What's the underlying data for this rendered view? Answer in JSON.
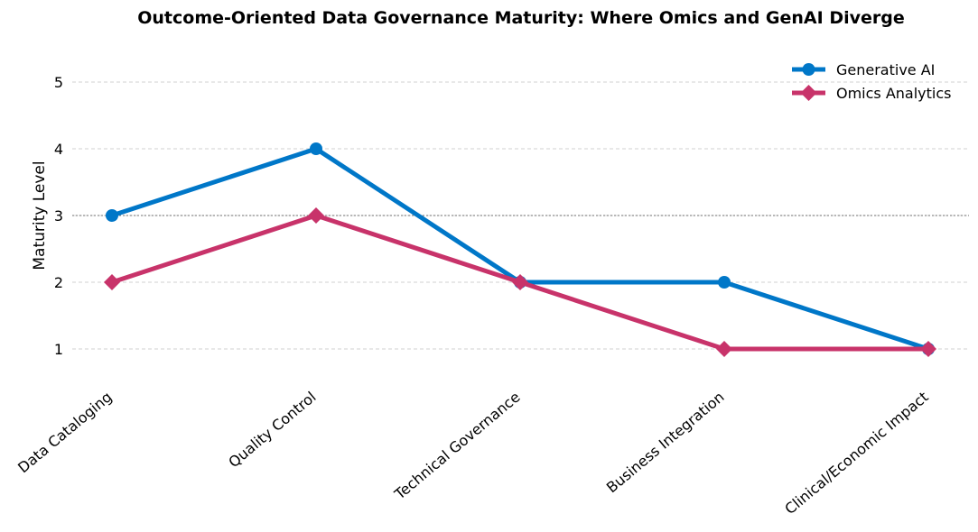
{
  "chart_data": {
    "type": "line",
    "title": "Outcome-Oriented Data Governance Maturity: Where Omics and GenAI Diverge",
    "xlabel": "",
    "ylabel": "Maturity Level",
    "categories": [
      "Data Cataloging",
      "Quality Control",
      "Technical Governance",
      "Business Integration",
      "Clinical/Economic Impact"
    ],
    "yticks": [
      "1",
      "2",
      "3",
      "4",
      "5"
    ],
    "ylim": [
      0.5,
      5.5
    ],
    "reference_line": 3,
    "grid": true,
    "legend_position": "top-right",
    "series": [
      {
        "name": "Generative AI",
        "values": [
          3,
          4,
          2,
          2,
          1
        ],
        "color": "#0077C8",
        "marker": "circle"
      },
      {
        "name": "Omics Analytics",
        "values": [
          2,
          3,
          2,
          1,
          1
        ],
        "color": "#C8336A",
        "marker": "diamond"
      }
    ]
  }
}
